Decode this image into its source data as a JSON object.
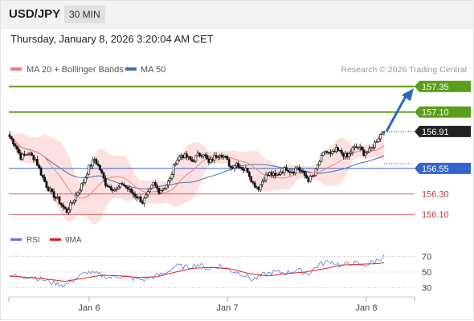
{
  "header": {
    "pair": "USD/JPY",
    "timeframe": "30 MIN"
  },
  "datetime": "Thursday, January 8, 2026 3:20:04 AM CET",
  "legend": {
    "ma20": "MA 20 + Bollinger Bands",
    "ma50": "MA 50",
    "credit": "Research © 2026 Trading Central"
  },
  "rsi_legend": {
    "rsi": "RSI",
    "ma": "9MA"
  },
  "colors": {
    "resistance": "#5a9e1a",
    "pivot": "#3366cc",
    "support": "#e05a5a",
    "current": "#222222",
    "bollinger": "#fde1e1",
    "ma20": "#f08080",
    "ma50": "#4a6fb0",
    "rsi": "#5b7bd6",
    "rsi_ma": "#e02020",
    "arrow": "#2f68b5",
    "candle_up": "#ffffff",
    "candle_down": "#111111"
  },
  "chart_data": {
    "type": "candlestick",
    "y_range": [
      156.0,
      157.45
    ],
    "x_labels": [
      "Jan 6",
      "Jan 7",
      "Jan 8"
    ],
    "levels": [
      {
        "label": "157.35",
        "value": 157.35,
        "kind": "resistance"
      },
      {
        "label": "157.10",
        "value": 157.1,
        "kind": "resistance"
      },
      {
        "label": "156.91",
        "value": 156.91,
        "kind": "current"
      },
      {
        "label": "156.55",
        "value": 156.55,
        "kind": "pivot"
      },
      {
        "label": "156.30",
        "value": 156.3,
        "kind": "support"
      },
      {
        "label": "156.10",
        "value": 156.1,
        "kind": "support"
      }
    ],
    "rsi_range": [
      20,
      80
    ],
    "rsi_ticks": [
      "70",
      "50",
      "30"
    ],
    "price_path": [
      [
        0,
        156.86
      ],
      [
        3,
        156.78
      ],
      [
        6,
        156.66
      ],
      [
        10,
        156.7
      ],
      [
        14,
        156.64
      ],
      [
        17,
        156.5
      ],
      [
        20,
        156.38
      ],
      [
        23,
        156.3
      ],
      [
        26,
        156.25
      ],
      [
        29,
        156.17
      ],
      [
        31,
        156.13
      ],
      [
        34,
        156.22
      ],
      [
        37,
        156.32
      ],
      [
        40,
        156.42
      ],
      [
        43,
        156.56
      ],
      [
        46,
        156.64
      ],
      [
        49,
        156.54
      ],
      [
        52,
        156.4
      ],
      [
        55,
        156.36
      ],
      [
        58,
        156.34
      ],
      [
        61,
        156.4
      ],
      [
        64,
        156.35
      ],
      [
        67,
        156.3
      ],
      [
        70,
        156.26
      ],
      [
        72,
        156.22
      ],
      [
        75,
        156.3
      ],
      [
        78,
        156.4
      ],
      [
        81,
        156.33
      ],
      [
        84,
        156.37
      ],
      [
        87,
        156.44
      ],
      [
        90,
        156.62
      ],
      [
        93,
        156.68
      ],
      [
        96,
        156.66
      ],
      [
        99,
        156.62
      ],
      [
        102,
        156.68
      ],
      [
        105,
        156.7
      ],
      [
        108,
        156.6
      ],
      [
        111,
        156.66
      ],
      [
        114,
        156.7
      ],
      [
        117,
        156.65
      ],
      [
        120,
        156.56
      ],
      [
        123,
        156.6
      ],
      [
        126,
        156.55
      ],
      [
        129,
        156.53
      ],
      [
        132,
        156.4
      ],
      [
        135,
        156.36
      ],
      [
        138,
        156.46
      ],
      [
        141,
        156.5
      ],
      [
        144,
        156.47
      ],
      [
        147,
        156.52
      ],
      [
        150,
        156.55
      ],
      [
        153,
        156.52
      ],
      [
        156,
        156.56
      ],
      [
        159,
        156.5
      ],
      [
        162,
        156.44
      ],
      [
        165,
        156.48
      ],
      [
        168,
        156.62
      ],
      [
        171,
        156.72
      ],
      [
        174,
        156.68
      ],
      [
        177,
        156.73
      ],
      [
        180,
        156.7
      ],
      [
        183,
        156.66
      ],
      [
        186,
        156.74
      ],
      [
        189,
        156.76
      ],
      [
        192,
        156.7
      ],
      [
        195,
        156.72
      ],
      [
        198,
        156.8
      ],
      [
        201,
        156.88
      ],
      [
        203,
        156.93
      ]
    ],
    "rsi_path": [
      [
        0,
        46
      ],
      [
        6,
        43
      ],
      [
        12,
        45
      ],
      [
        18,
        40
      ],
      [
        24,
        36
      ],
      [
        30,
        33
      ],
      [
        36,
        42
      ],
      [
        42,
        50
      ],
      [
        48,
        47
      ],
      [
        54,
        43
      ],
      [
        60,
        45
      ],
      [
        66,
        42
      ],
      [
        72,
        40
      ],
      [
        78,
        44
      ],
      [
        84,
        48
      ],
      [
        90,
        58
      ],
      [
        96,
        56
      ],
      [
        102,
        60
      ],
      [
        108,
        54
      ],
      [
        114,
        58
      ],
      [
        120,
        52
      ],
      [
        126,
        48
      ],
      [
        132,
        40
      ],
      [
        138,
        47
      ],
      [
        144,
        50
      ],
      [
        150,
        49
      ],
      [
        156,
        53
      ],
      [
        162,
        48
      ],
      [
        168,
        60
      ],
      [
        174,
        64
      ],
      [
        180,
        58
      ],
      [
        186,
        62
      ],
      [
        192,
        58
      ],
      [
        198,
        64
      ],
      [
        203,
        70
      ]
    ],
    "rsi_ma_path": [
      [
        0,
        45
      ],
      [
        10,
        43
      ],
      [
        20,
        41
      ],
      [
        30,
        38
      ],
      [
        40,
        42
      ],
      [
        50,
        46
      ],
      [
        60,
        45
      ],
      [
        70,
        43
      ],
      [
        80,
        44
      ],
      [
        90,
        50
      ],
      [
        100,
        55
      ],
      [
        110,
        56
      ],
      [
        120,
        54
      ],
      [
        130,
        48
      ],
      [
        140,
        45
      ],
      [
        150,
        48
      ],
      [
        160,
        50
      ],
      [
        170,
        54
      ],
      [
        180,
        59
      ],
      [
        190,
        60
      ],
      [
        200,
        61
      ],
      [
        203,
        62
      ]
    ]
  }
}
